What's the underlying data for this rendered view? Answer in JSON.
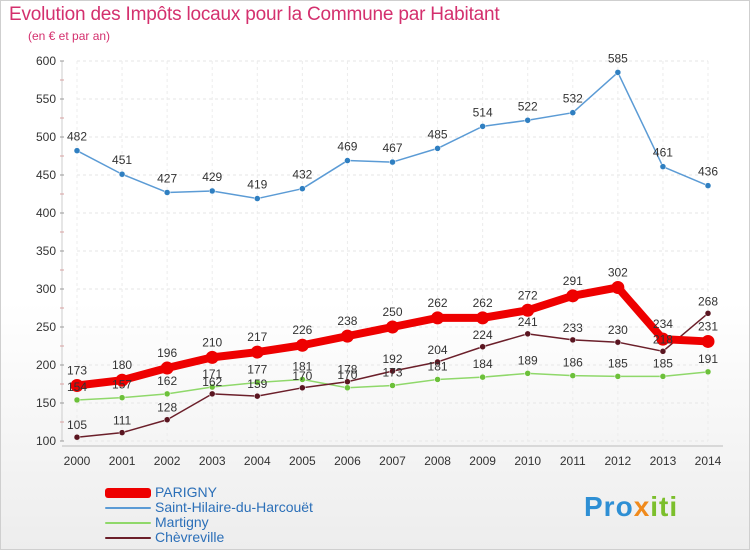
{
  "chart_data": {
    "type": "line",
    "title": "Evolution des Impôts locaux pour la Commune par Habitant",
    "subtitle": "(en € et par an)",
    "categories": [
      "2000",
      "2001",
      "2002",
      "2003",
      "2004",
      "2005",
      "2006",
      "2007",
      "2008",
      "2009",
      "2010",
      "2011",
      "2012",
      "2013",
      "2014"
    ],
    "ylim": [
      100,
      600
    ],
    "yticks": [
      100,
      150,
      200,
      250,
      300,
      350,
      400,
      450,
      500,
      550,
      600
    ],
    "series": [
      {
        "name": "Saint-Hilaire-du-Harcouët",
        "color": "#5b9bd5",
        "dot": "#2f7fc1",
        "values": [
          482,
          451,
          427,
          429,
          419,
          432,
          469,
          467,
          485,
          514,
          522,
          532,
          585,
          461,
          436
        ]
      },
      {
        "name": "Martigny",
        "color": "#8fd86a",
        "dot": "#6cc03a",
        "values": [
          154,
          157,
          162,
          171,
          177,
          181,
          170,
          173,
          181,
          184,
          189,
          186,
          185,
          185,
          191
        ]
      },
      {
        "name": "Chèvreville",
        "color": "#6b1f2a",
        "dot": "#5a1520",
        "values": [
          105,
          111,
          128,
          162,
          159,
          170,
          178,
          192,
          204,
          224,
          241,
          233,
          230,
          218,
          268
        ]
      },
      {
        "name": "PARIGNY",
        "color": "#ee0000",
        "dot": "#ee0000",
        "values": [
          173,
          180,
          196,
          210,
          217,
          226,
          238,
          250,
          262,
          262,
          272,
          291,
          302,
          234,
          231
        ]
      }
    ],
    "labels": {
      "Saint-Hilaire-du-Harcouët": [
        "482",
        "451",
        "427",
        "429",
        "419",
        "432",
        "469",
        "467",
        "485",
        "514",
        "522",
        "532",
        "585",
        "461",
        "436"
      ],
      "PARIGNY": [
        "173",
        "180",
        "196",
        "210",
        "217",
        "226",
        "238",
        "250",
        "262",
        "262",
        "272",
        "291",
        "302",
        "234",
        "231"
      ],
      "Chèvreville": [
        "105",
        "111",
        "128",
        "162",
        "159",
        "170",
        "178",
        "192",
        "204",
        "224",
        "241",
        "233",
        "230",
        "218",
        "268"
      ],
      "Martigny": [
        "154",
        "157",
        "162",
        "171",
        "177",
        "181",
        "170",
        "173",
        "181",
        "184",
        "189",
        "186",
        "185",
        "185",
        "191"
      ]
    },
    "legend": [
      "PARIGNY",
      "Saint-Hilaire-du-Harcouët",
      "Martigny",
      "Chèvreville"
    ]
  },
  "brand": {
    "part1": "Pro",
    "part2": "x",
    "part3": "iti"
  }
}
